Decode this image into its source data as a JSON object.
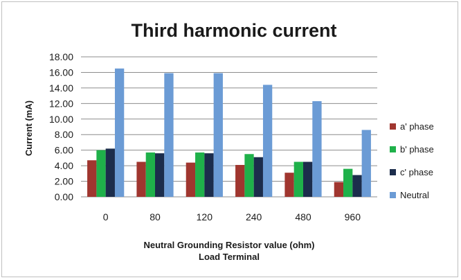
{
  "chart_data": {
    "type": "bar",
    "title": "Third harmonic current",
    "ylabel": "Current (mA)",
    "xlabel": "Neutral Grounding Resistor value (ohm)",
    "xlabel2": "Load Terminal",
    "categories": [
      "0",
      "80",
      "120",
      "240",
      "480",
      "960"
    ],
    "ylim": [
      0,
      18
    ],
    "yticks": [
      "0.00",
      "2.00",
      "4.00",
      "6.00",
      "8.00",
      "10.00",
      "12.00",
      "14.00",
      "16.00",
      "18.00"
    ],
    "grid": true,
    "legend_position": "right",
    "series": [
      {
        "name": "a' phase",
        "color": "#a0362f",
        "values": [
          4.7,
          4.5,
          4.4,
          4.1,
          3.1,
          1.9
        ]
      },
      {
        "name": "b' phase",
        "color": "#1fb14a",
        "values": [
          6.0,
          5.7,
          5.7,
          5.5,
          4.5,
          3.6
        ]
      },
      {
        "name": "c' phase",
        "color": "#1c2d4c",
        "values": [
          6.2,
          5.6,
          5.6,
          5.1,
          4.5,
          2.8
        ]
      },
      {
        "name": "Neutral",
        "color": "#6b9bd5",
        "values": [
          16.5,
          15.9,
          15.9,
          14.4,
          12.3,
          8.6
        ]
      }
    ]
  }
}
